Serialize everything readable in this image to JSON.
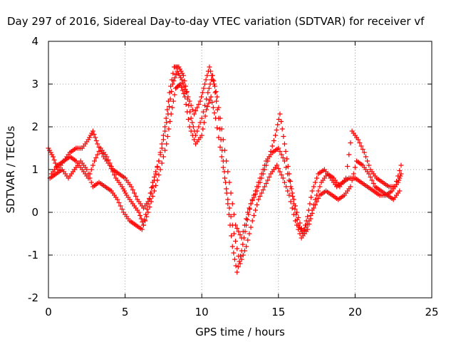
{
  "chart_data": {
    "type": "scatter",
    "title": "Day 297 of 2016, Sidereal Day-to-day VTEC variation (SDTVAR) for receiver vf",
    "xlabel": "GPS time / hours",
    "ylabel": "SDTVAR / TECUs",
    "xlim": [
      0,
      25
    ],
    "ylim": [
      -2,
      4
    ],
    "xticks": [
      "0",
      "5",
      "10",
      "15",
      "20",
      "25"
    ],
    "yticks": [
      "-2",
      "-1",
      "0",
      "1",
      "2",
      "3",
      "4"
    ],
    "grid": true,
    "marker": "plus",
    "color": "#ff0000",
    "series": [
      {
        "x": [
          0.0,
          0.3,
          0.6,
          1.0,
          1.4,
          1.8,
          2.2,
          2.6,
          2.9,
          3.2,
          3.6,
          4.0,
          4.4,
          4.8,
          5.1,
          5.5,
          5.9,
          6.2,
          6.5,
          6.8,
          7.2,
          7.6,
          7.9,
          8.2,
          8.5,
          8.8,
          9.1,
          9.5,
          9.9,
          10.2,
          10.5,
          10.8,
          11.1,
          11.4,
          11.7,
          12.0,
          12.3,
          12.6,
          12.9,
          13.2,
          13.6,
          14.0,
          14.4,
          14.8,
          15.1,
          15.4,
          15.7,
          16.0,
          16.3,
          16.6,
          16.9,
          17.2,
          17.6,
          18.0,
          18.4,
          18.8,
          19.2,
          19.6,
          20.0,
          20.4,
          20.8,
          21.2,
          21.6,
          22.0,
          22.4,
          22.8,
          23.0
        ],
        "y": [
          1.5,
          1.3,
          1.0,
          1.2,
          1.4,
          1.5,
          1.5,
          1.7,
          1.9,
          1.6,
          1.3,
          1.1,
          0.8,
          0.6,
          0.4,
          0.2,
          0.0,
          -0.3,
          0.2,
          0.7,
          1.2,
          2.0,
          2.8,
          3.4,
          3.4,
          3.2,
          2.7,
          2.3,
          2.6,
          3.0,
          3.4,
          3.0,
          2.2,
          1.2,
          0.2,
          -0.8,
          -1.4,
          -0.9,
          -0.3,
          0.2,
          0.5,
          0.9,
          1.3,
          1.8,
          2.3,
          1.6,
          0.9,
          0.2,
          -0.3,
          -0.5,
          -0.1,
          0.5,
          0.9,
          1.0,
          0.8,
          0.6,
          0.7,
          0.8,
          0.8,
          0.7,
          0.6,
          0.5,
          0.4,
          0.4,
          0.5,
          0.7,
          0.9
        ]
      },
      {
        "x": [
          0.2,
          0.6,
          1.0,
          1.4,
          1.8,
          2.2,
          2.6,
          3.0,
          3.4,
          3.8,
          4.2,
          4.6,
          5.0,
          5.4,
          5.8,
          6.2,
          6.6,
          7.0,
          7.4,
          7.8,
          8.1,
          8.4,
          8.7,
          9.0,
          9.3,
          9.6,
          10.0,
          10.4,
          10.7,
          11.0,
          11.4,
          11.8,
          12.2,
          12.6,
          13.0,
          13.4,
          13.8,
          14.2,
          14.6,
          15.0,
          15.4,
          15.8,
          16.2,
          16.6,
          17.0,
          17.4,
          17.8,
          18.2,
          18.6,
          19.0,
          19.4,
          19.8,
          20.2,
          20.6,
          21.0,
          21.4,
          21.8,
          22.2,
          22.6,
          23.0
        ],
        "y": [
          0.9,
          1.1,
          1.2,
          1.3,
          1.2,
          1.0,
          0.8,
          1.2,
          1.5,
          1.3,
          1.0,
          0.9,
          0.8,
          0.6,
          0.3,
          0.1,
          0.3,
          0.9,
          1.5,
          2.3,
          3.0,
          3.3,
          3.1,
          2.8,
          2.2,
          1.8,
          2.2,
          2.8,
          3.2,
          2.7,
          1.7,
          0.7,
          -0.3,
          -0.6,
          0.0,
          0.4,
          0.8,
          1.2,
          1.4,
          1.5,
          1.2,
          0.6,
          0.0,
          -0.5,
          -0.2,
          0.3,
          0.7,
          0.9,
          0.8,
          0.6,
          0.8,
          1.9,
          1.7,
          1.4,
          1.0,
          0.8,
          0.7,
          0.6,
          0.6,
          1.1
        ]
      },
      {
        "x": [
          0.1,
          0.5,
          0.9,
          1.3,
          1.7,
          2.1,
          2.5,
          2.9,
          3.3,
          3.7,
          4.1,
          4.5,
          4.9,
          5.3,
          5.7,
          6.1,
          6.5,
          6.9,
          7.3,
          7.7,
          8.0,
          8.3,
          8.6,
          8.9,
          9.2,
          9.6,
          10.0,
          10.3,
          10.6,
          10.9,
          11.3,
          11.7,
          12.1,
          12.5,
          12.9,
          13.3,
          13.7,
          14.1,
          14.5,
          14.9,
          15.3,
          15.7,
          16.1,
          16.5,
          16.9,
          17.3,
          17.7,
          18.1,
          18.5,
          18.9,
          19.3,
          19.7,
          20.1,
          20.5,
          20.9,
          21.3,
          21.7,
          22.1,
          22.5,
          22.9
        ],
        "y": [
          0.8,
          0.9,
          1.0,
          0.8,
          1.0,
          1.2,
          1.0,
          0.6,
          0.7,
          0.6,
          0.5,
          0.3,
          0.0,
          -0.2,
          -0.3,
          -0.4,
          0.0,
          0.5,
          1.0,
          1.6,
          2.3,
          2.9,
          3.0,
          2.7,
          2.0,
          1.6,
          1.8,
          2.4,
          2.7,
          2.2,
          1.3,
          0.3,
          -0.5,
          -1.2,
          -0.8,
          -0.2,
          0.3,
          0.6,
          0.9,
          1.1,
          0.8,
          0.4,
          -0.2,
          -0.6,
          -0.4,
          0.1,
          0.4,
          0.5,
          0.4,
          0.3,
          0.4,
          0.6,
          1.2,
          1.1,
          0.9,
          0.6,
          0.5,
          0.4,
          0.3,
          0.5
        ]
      }
    ]
  }
}
